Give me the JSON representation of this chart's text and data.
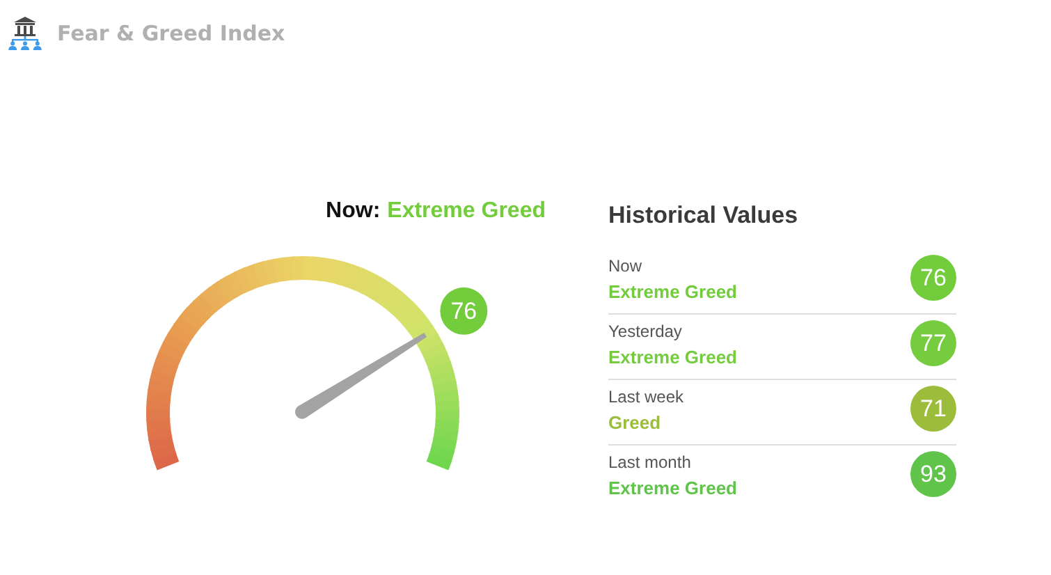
{
  "chart_data": [
    {
      "type": "other",
      "title": "Fear & Greed Index",
      "subtitle": "Now:",
      "annotations": [
        "Extreme Greed"
      ],
      "values": [
        76
      ],
      "data_labels": true,
      "color": "#72cc3c"
    },
    {
      "type": "other",
      "title": "Historical Values",
      "categories": [
        "Now",
        "Yesterday",
        "Last week",
        "Last month"
      ],
      "values": [
        76,
        77,
        71,
        93
      ],
      "data_labels": true,
      "colors": [
        "#72cc3c",
        "#74cc3e",
        "#9cbd3c",
        "#60c44a"
      ],
      "annotations": [
        "Extreme Greed",
        "Extreme Greed",
        "Greed",
        "Extreme Greed"
      ]
    }
  ]
}
